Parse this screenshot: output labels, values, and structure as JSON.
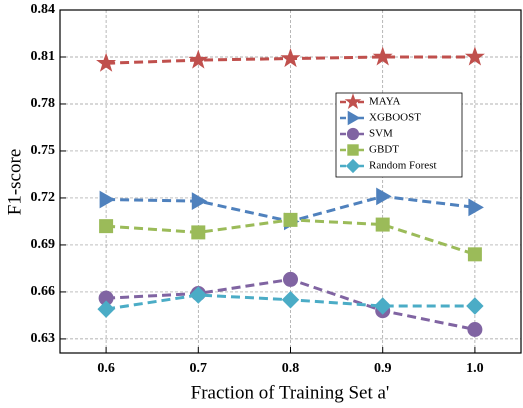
{
  "chart_data": {
    "type": "line",
    "x_label": "Fraction of Training Set a'",
    "y_label": "F1-score",
    "x": [
      0.6,
      0.7,
      0.8,
      0.9,
      1.0
    ],
    "xlim": [
      0.55,
      1.05
    ],
    "xticks": [
      0.6,
      0.7,
      0.8,
      0.9,
      {
        "value": 1.0,
        "label": "1.0"
      }
    ],
    "ylim": [
      0.621,
      0.84
    ],
    "yticks": [
      0.63,
      0.66,
      0.69,
      0.72,
      0.75,
      0.78,
      0.81,
      0.84
    ],
    "grid": true,
    "legend": "center right",
    "series": [
      {
        "name": "MAYA",
        "color": "#c0504d",
        "marker": "star",
        "values": [
          0.806,
          0.808,
          0.809,
          0.81,
          0.81
        ]
      },
      {
        "name": "XGBOOST",
        "color": "#4f81bd",
        "marker": "triangle-right",
        "values": [
          0.719,
          0.718,
          0.705,
          0.721,
          0.714
        ]
      },
      {
        "name": "SVM",
        "color": "#8064a2",
        "marker": "circle",
        "values": [
          0.656,
          0.659,
          0.668,
          0.648,
          0.636
        ]
      },
      {
        "name": "GBDT",
        "color": "#9bbb59",
        "marker": "square",
        "values": [
          0.702,
          0.698,
          0.706,
          0.703,
          0.684
        ]
      },
      {
        "name": "Random Forest",
        "color": "#4bacc6",
        "marker": "diamond",
        "values": [
          0.649,
          0.658,
          0.655,
          0.651,
          0.651
        ]
      }
    ]
  }
}
